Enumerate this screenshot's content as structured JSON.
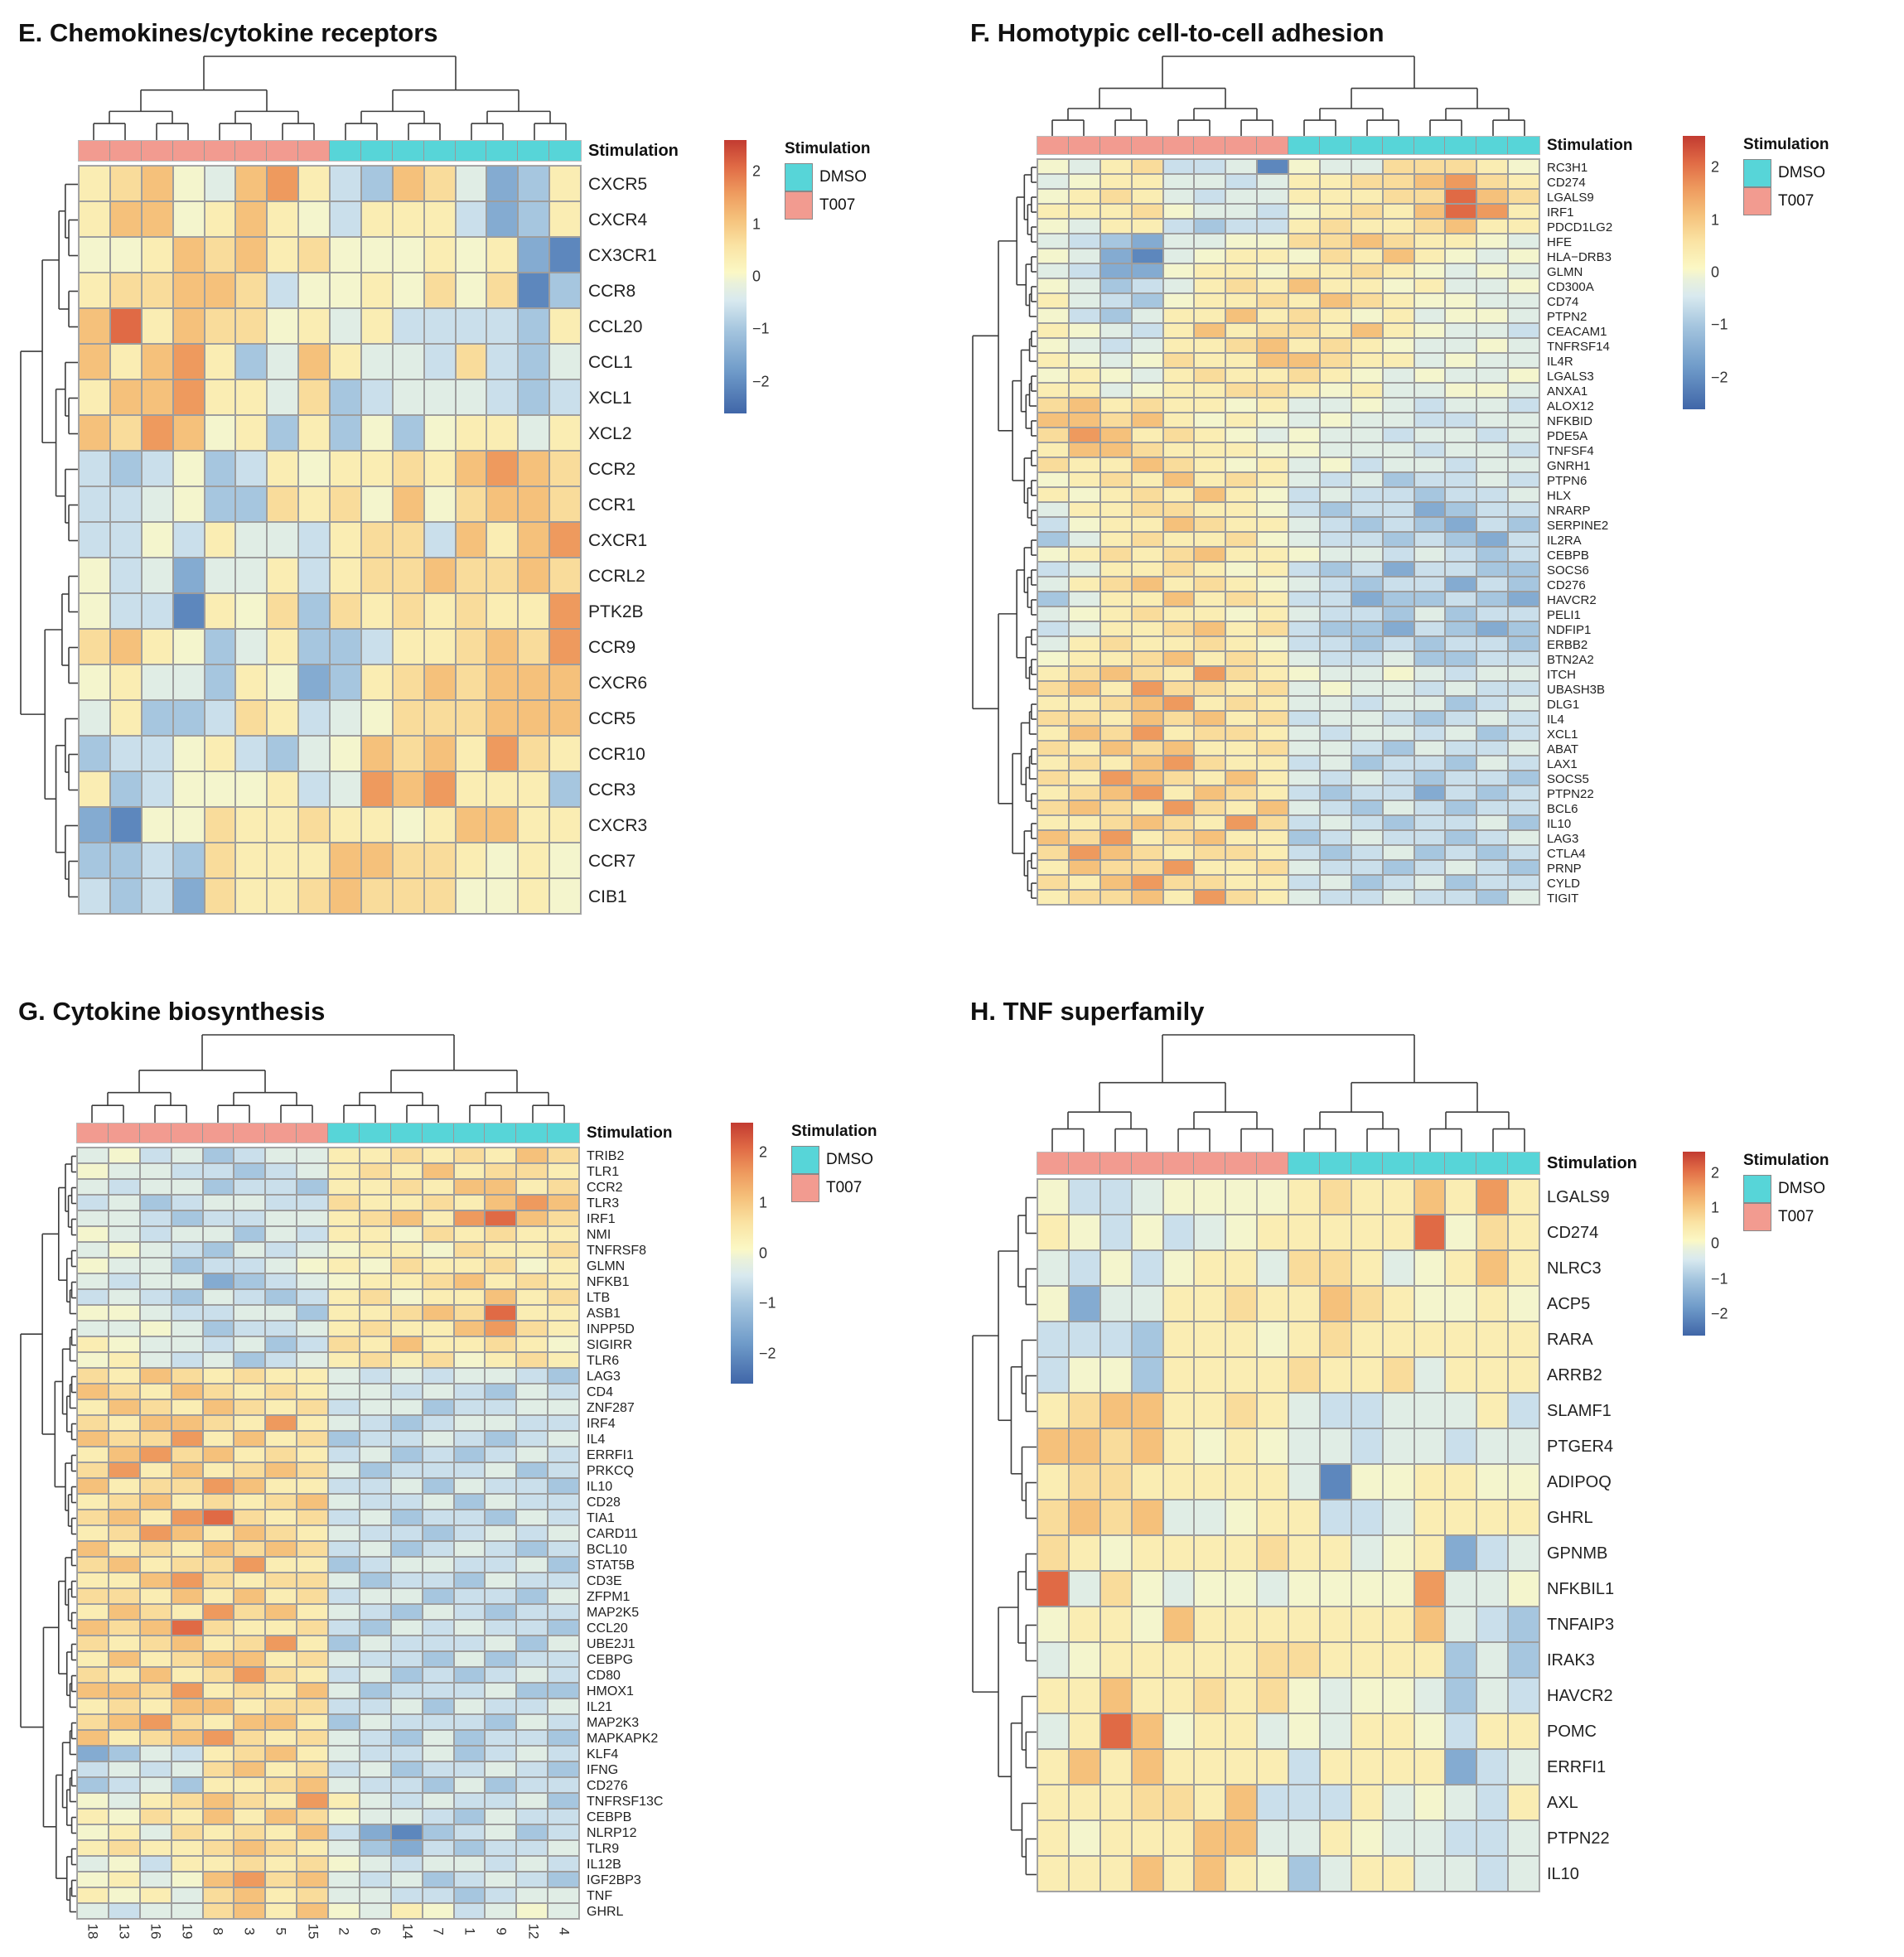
{
  "colors": {
    "dmso": "#57D5D8",
    "t007": "#F29B90",
    "cell_border": "#9d9d9d",
    "dendrogram": "#3c3c3c"
  },
  "value_key": {
    "a": -2.1,
    "b": -1.5,
    "c": -1.0,
    "d": -0.6,
    "e": -0.3,
    "f": 0.0,
    "g": 0.35,
    "h": 0.7,
    "i": 1.1,
    "j": 1.6,
    "k": 2.1
  },
  "colorscale": {
    "domain": [
      -2.6,
      2.6
    ],
    "stops": [
      [
        -2.6,
        "#4066A8"
      ],
      [
        -1.8,
        "#6F9BC9"
      ],
      [
        -1.0,
        "#A6C6DF"
      ],
      [
        -0.45,
        "#D8E9EF"
      ],
      [
        -0.12,
        "#EAF1DA"
      ],
      [
        0.08,
        "#FBF8C5"
      ],
      [
        0.6,
        "#FAE3A3"
      ],
      [
        1.1,
        "#F5C17B"
      ],
      [
        1.6,
        "#EE9A5E"
      ],
      [
        2.1,
        "#E06A45"
      ],
      [
        2.6,
        "#C23B31"
      ]
    ]
  },
  "chart_data": [
    {
      "type": "heatmap",
      "panel": "E",
      "title": "E. Chemokines/cytokine receptors",
      "annotation_label": "Stimulation",
      "legend": {
        "title": "Stimulation",
        "items": [
          {
            "label": "DMSO",
            "color": "#57D5D8"
          },
          {
            "label": "T007",
            "color": "#F29B90"
          }
        ]
      },
      "colorbar_ticks": [
        "2",
        "1",
        "0",
        "−1",
        "−2"
      ],
      "col_groups": [
        {
          "name": "T007",
          "count": 8
        },
        {
          "name": "DMSO",
          "count": 8
        }
      ],
      "n_cols": 16,
      "rows": [
        "CXCR5",
        "CXCR4",
        "CX3CR1",
        "CCR8",
        "CCL20",
        "CCL1",
        "XCL1",
        "XCL2",
        "CCR2",
        "CCR1",
        "CXCR1",
        "CCRL2",
        "PTK2B",
        "CCR9",
        "CXCR6",
        "CCR5",
        "CCR10",
        "CCR3",
        "CXCR3",
        "CCR7",
        "CIB1"
      ],
      "matrix_encoded": [
        "ghifeijgdcihebcg",
        "giifgigfdgggdbcg",
        "ffgihighfffgfgba",
        "ghhiihdffgfhfhac",
        "ikgihhfgegddddcg",
        "igijgceigeedhdce",
        "giijggehcdeeedcd",
        "ihjifgcgcfcfggeg",
        "dcdfcdgfgghgijih",
        "ddefcchghfifhiih",
        "ddfdgeedghhdigij",
        "fdebeegdghhihhih",
        "fddagfhchghghggj",
        "higfcegccdgghihj",
        "fgeecgfbcghihiii",
        "egccdhgdefhhhiii",
        "cddfgdcefihigjhg",
        "gcdfffgdejijgggc",
        "baffhgghggfgiigg",
        "ccdchgggiihhgfgf",
        "dcdbhgghihhhffgf"
      ]
    },
    {
      "type": "heatmap",
      "panel": "F",
      "title": "F. Homotypic cell-to-cell adhesion",
      "annotation_label": "Stimulation",
      "legend": {
        "title": "Stimulation",
        "items": [
          {
            "label": "DMSO",
            "color": "#57D5D8"
          },
          {
            "label": "T007",
            "color": "#F29B90"
          }
        ]
      },
      "colorbar_ticks": [
        "2",
        "1",
        "0",
        "−1",
        "−2"
      ],
      "col_groups": [
        {
          "name": "T007",
          "count": 8
        },
        {
          "name": "DMSO",
          "count": 8
        }
      ],
      "n_cols": 16,
      "rows": [
        "RC3H1",
        "CD274",
        "LGALS9",
        "IRF1",
        "PDCD1LG2",
        "HFE",
        "HLA−DRB3",
        "GLMN",
        "CD300A",
        "CD74",
        "PTPN2",
        "CEACAM1",
        "TNFRSF14",
        "IL4R",
        "LGALS3",
        "ANXA1",
        "ALOX12",
        "NFKBID",
        "PDE5A",
        "TNFSF4",
        "GNRH1",
        "PTPN6",
        "HLX",
        "NRARP",
        "SERPINE2",
        "IL2RA",
        "CEBPB",
        "SOCS6",
        "CD276",
        "HAVCR2",
        "PELI1",
        "NDFIP1",
        "ERBB2",
        "BTN2A2",
        "ITCH",
        "UBASH3B",
        "DLG1",
        "IL4",
        "XCL1",
        "ABAT",
        "LAX1",
        "SOCS5",
        "PTPN22",
        "BCL6",
        "IL10",
        "LAG3",
        "CTLA4",
        "PRNP",
        "CYLD",
        "TIGIT"
      ],
      "matrix_encoded": [
        "feghddeafeehhhgf",
        "efggeedegghhijhg",
        "fghgedeeggghhkih",
        "ggghfeedfghgikjg",
        "feggdcddghgghigg",
        "edcbeeffhhihggfe",
        "febaefggfhgigfef",
        "edbbfggfgghgfefe",
        "fecdeghgiggfgeef",
        "gedcfgghgihgffee",
        "fdceggighgfgeffe",
        "gfedgighhgigfeed",
        "fedegghighgfeefe",
        "gfefhggiihggefee",
        "fgfeghgghgfefeef",
        "ggefgghhgfgeeffe",
        "highggfgeefedeed",
        "iihigfgfefeeddee",
        "hjighgfefeedeede",
        "giihgggffeeedeed",
        "hggihgfgefdeedee",
        "fghgighgedecdded",
        "gfghgigfdeddcdde",
        "egghhggfdcddbcdd",
        "dfggihggedcdcbdc",
        "ceghgghfeddcdcbd",
        "fghghiggfeededcd",
        "degghgfgdcdbddcc",
        "eghighgfedcddbdc",
        "ceggighgddbccdcb",
        "efghggfgeddcecdd",
        "degghighdccbdcbc",
        "eghgghgfddcdcddc",
        "fgghighgeddeccdd",
        "ghihgjhgfeefedee",
        "higjhhghefeededd",
        "gghijghgeedeecde",
        "hhgihighdeedcded",
        "gihjghhgedeedecd",
        "hgihiggheedcedde",
        "ghgijhggdecddced",
        "hgjihgigededcddc",
        "ghijgihgdcddbdcd",
        "hihgjhgiedcedcdd",
        "gghihgjhdedcddec",
        "ihjghiggcdeddcde",
        "hjihghhgdcdecdcd",
        "gihhjggheddcdedc",
        "hgijhhggdecdecdd",
        "ghhigjhgeddeddce"
      ]
    },
    {
      "type": "heatmap",
      "panel": "G",
      "title": "G. Cytokine biosynthesis",
      "annotation_label": "Stimulation",
      "legend": {
        "title": "Stimulation",
        "items": [
          {
            "label": "DMSO",
            "color": "#57D5D8"
          },
          {
            "label": "T007",
            "color": "#F29B90"
          }
        ]
      },
      "colorbar_ticks": [
        "2",
        "1",
        "0",
        "−1",
        "−2"
      ],
      "col_groups": [
        {
          "name": "T007",
          "count": 8
        },
        {
          "name": "DMSO",
          "count": 8
        }
      ],
      "n_cols": 16,
      "col_labels": [
        "18",
        "13",
        "16",
        "19",
        "8",
        "3",
        "5",
        "15",
        "2",
        "6",
        "14",
        "7",
        "1",
        "9",
        "12",
        "4"
      ],
      "rows": [
        "TRIB2",
        "TLR1",
        "CCR2",
        "TLR3",
        "IRF1",
        "NMI",
        "TNFRSF8",
        "GLMN",
        "NFKB1",
        "LTB",
        "ASB1",
        "INPP5D",
        "SIGIRR",
        "TLR6",
        "LAG3",
        "CD4",
        "ZNF287",
        "IRF4",
        "IL4",
        "ERRFI1",
        "PRKCQ",
        "IL10",
        "CD28",
        "TIA1",
        "CARD11",
        "BCL10",
        "STAT5B",
        "CD3E",
        "ZFPM1",
        "MAP2K5",
        "CCL20",
        "UBE2J1",
        "CEBPG",
        "CD80",
        "HMOX1",
        "IL21",
        "MAP2K3",
        "MAPKAPK2",
        "KLF4",
        "IFNG",
        "CD276",
        "TNFRSF13C",
        "CEBPB",
        "NLRP12",
        "TLR9",
        "IL12B",
        "IGF2BP3",
        "TNF",
        "GHRL"
      ],
      "matrix_encoded": [
        "efdecdeegghghgih",
        "feeddcdeghgighhg",
        "edeecddcgghgiigh",
        "decdeeddhgghgiji",
        "eedcddeeghigjkih",
        "fedeecedggfhghgg",
        "efedcedefggfhggh",
        "feecddefgfhgghfg",
        "edeebcdefgghighg",
        "dedcedcdghfggigh",
        "ffeddeecgghihkgg",
        "eefecddeghggijhg",
        "gfeedecdhgigghgf",
        "fgedecdeghghfghg",
        "hgihghggededeedc",
        "ihgihghgeededced",
        "gihgihghdeecddee",
        "hgiihgjgedcdeedd",
        "ihhjgighcddedcde",
        "gijhighgdecdcded",
        "hjgighihecdddecd",
        "ighhjiggddeceddc",
        "ghighghieddecedd",
        "higjkhghdecddced",
        "ghjigihgeddcdede",
        "ighgihihdecdedcd",
        "highhjggcdeeddec",
        "ggijhghhecddcedd",
        "hhgigighdeecddce",
        "gihgjhigedcedcdd",
        "ihikhgghdcededdc",
        "hghighjgcedddece",
        "gighiigheddcecdd",
        "hgighjhgdecdcded",
        "iihjghgiecdddecc",
        "ghgiighhddecedde",
        "hijhgiigcedddced",
        "ighijhghedcecddc",
        "bcedghigeddecded",
        "dedehighdecddedc",
        "cdecgghieddcecdd",
        "feghihgjgededdec",
        "gfhgigihfeedcedd",
        "fgehghgidbacdecd",
        "ghgghihgecbdcdde",
        "efdgghghfedeeded",
        "fgefijhiedecdedc",
        "gfgehigheeddcdee",
        "edeehigifegfdefe"
      ]
    },
    {
      "type": "heatmap",
      "panel": "H",
      "title": "H. TNF superfamily",
      "annotation_label": "Stimulation",
      "legend": {
        "title": "Stimulation",
        "items": [
          {
            "label": "DMSO",
            "color": "#57D5D8"
          },
          {
            "label": "T007",
            "color": "#F29B90"
          }
        ]
      },
      "colorbar_ticks": [
        "2",
        "1",
        "0",
        "−1",
        "−2"
      ],
      "col_groups": [
        {
          "name": "T007",
          "count": 8
        },
        {
          "name": "DMSO",
          "count": 8
        }
      ],
      "n_cols": 16,
      "rows": [
        "LGALS9",
        "CD274",
        "NLRC3",
        "ACP5",
        "RARA",
        "ARRB2",
        "SLAMF1",
        "PTGER4",
        "ADIPOQ",
        "GHRL",
        "GPNMB",
        "NFKBIL1",
        "TNFAIP3",
        "IRAK3",
        "HAVCR2",
        "POMC",
        "ERRFI1",
        "AXL",
        "PTPN22",
        "IL10"
      ],
      "matrix_encoded": [
        "fddeffffghggigjg",
        "gfdfdefgggggkfhg",
        "edfdfggehhgefgig",
        "fbeegghggihgffgf",
        "dddcgggfghgggggg",
        "dffcgggghggheggg",
        "ghiigghgeddeeegd",
        "iihigfgfeedeedee",
        "ghhgggggeaffggff",
        "hihieefggddegggg",
        "hgfgggghggefgbde",
        "kehfeffeffffjeef",
        "fggfigggggggiedc",
        "efggggghhggggcec",
        "ggigghghfeffeced",
        "egkifggefeggfdgg",
        "gigiggggdggggbde",
        "ggghhgidddgefedg",
        "gfgggiieegfeedde",
        "gggigigfceggeede"
      ]
    }
  ]
}
